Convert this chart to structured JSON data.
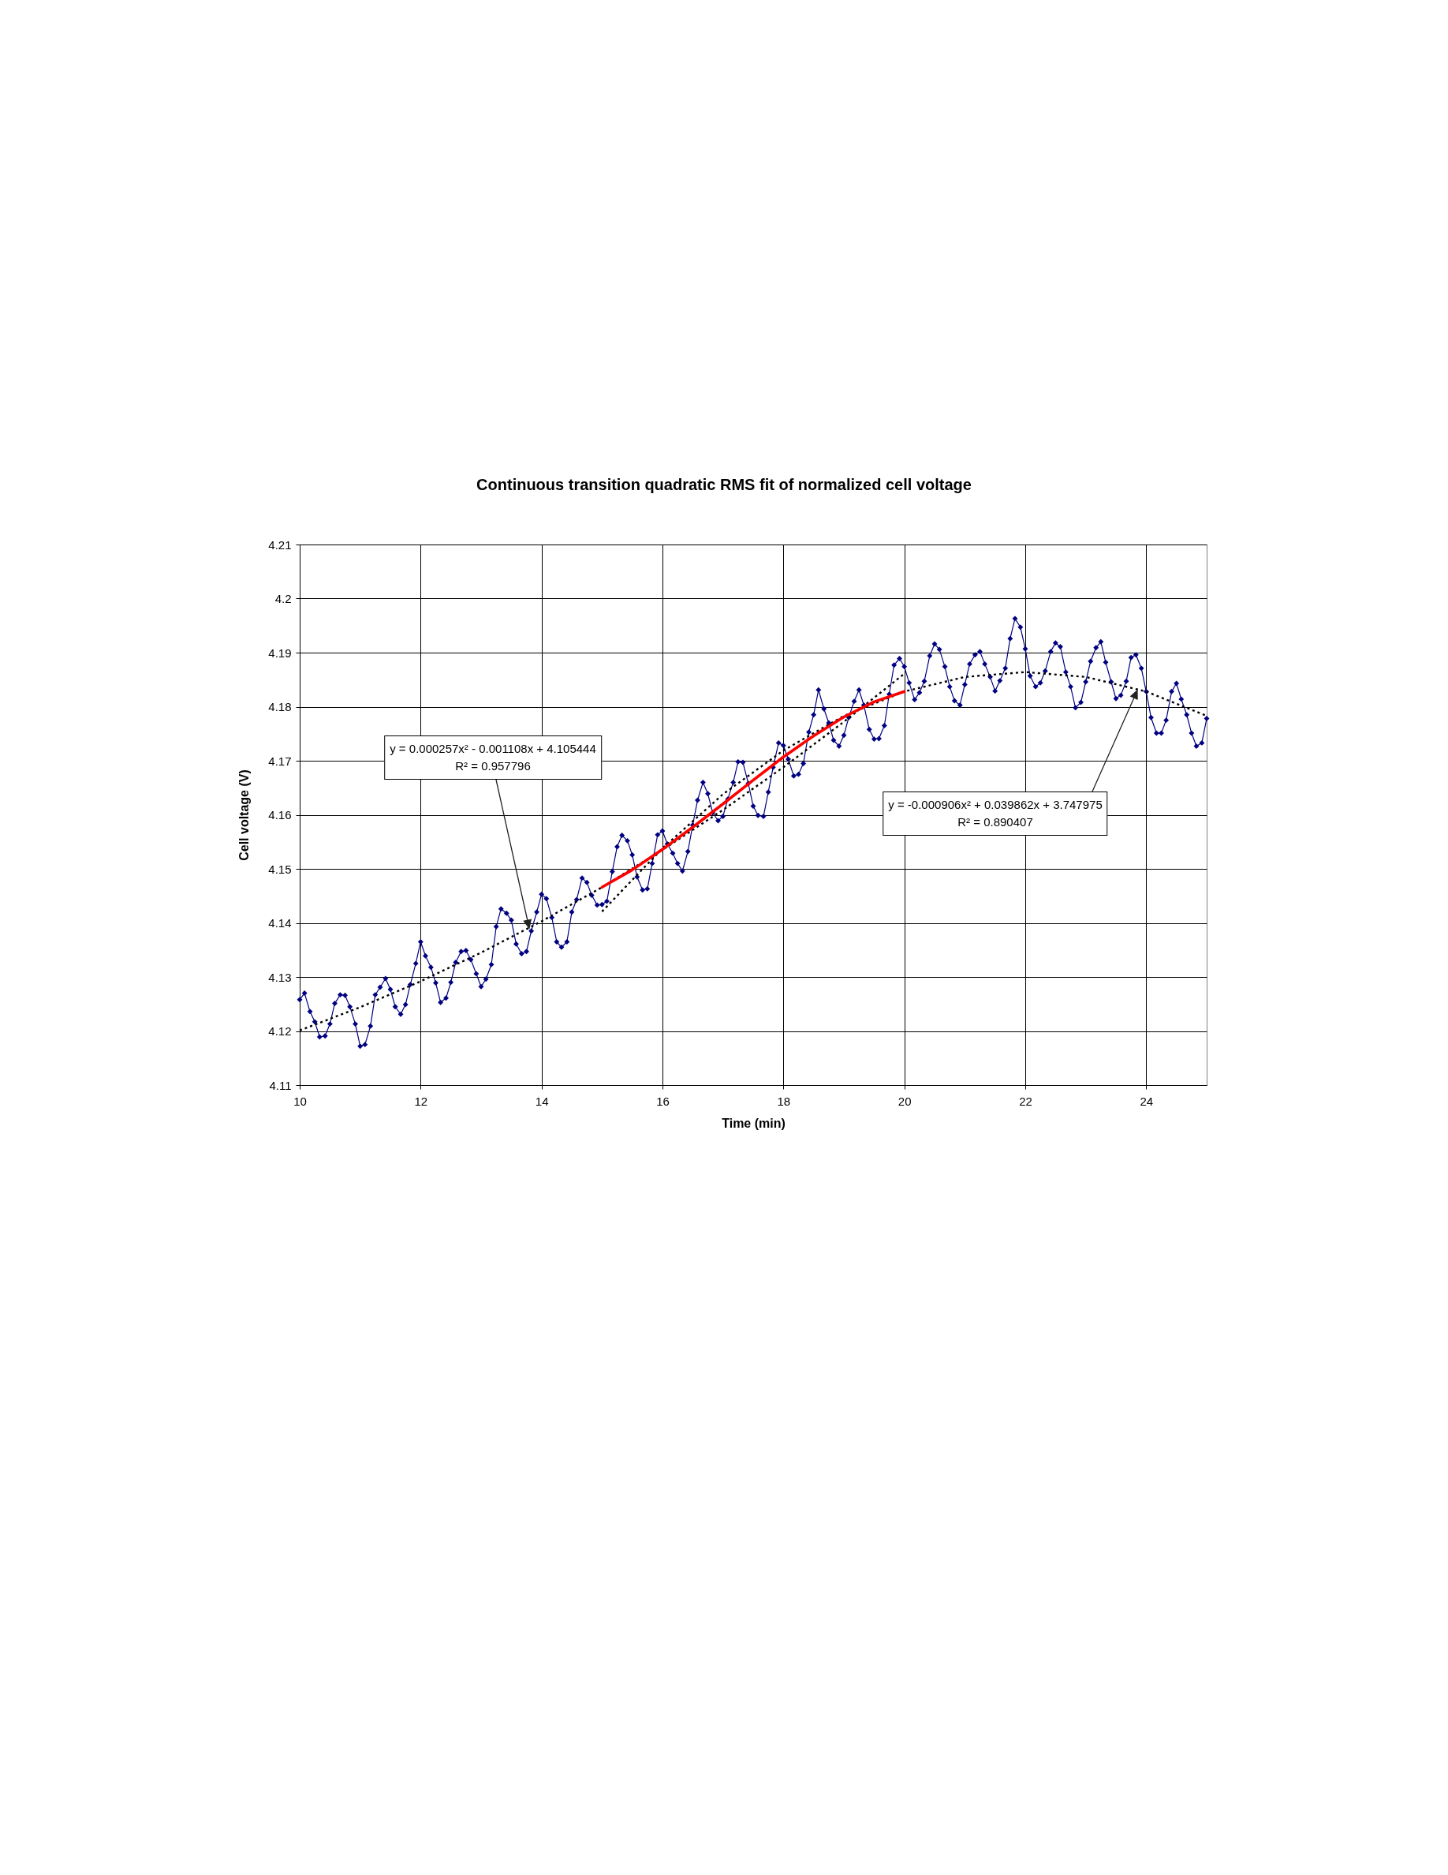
{
  "chart_data": {
    "type": "line",
    "title": "Continuous transition quadratic RMS fit of normalized cell voltage",
    "xlabel": "Time (min)",
    "ylabel": "Cell voltage (V)",
    "xlim": [
      10,
      25
    ],
    "xticks": [
      10,
      12,
      14,
      16,
      18,
      20,
      22,
      24
    ],
    "ylim": [
      4.11,
      4.21
    ],
    "yticks": [
      4.11,
      4.12,
      4.13,
      4.14,
      4.15,
      4.16,
      4.17,
      4.18,
      4.19,
      4.2,
      4.21
    ],
    "grid": true,
    "series": [
      {
        "color": "#000080",
        "marker": "diamond",
        "line_style": "solid",
        "x": [
          10,
          10.08,
          10.17,
          10.25,
          10.33,
          10.42,
          10.5,
          10.58,
          10.67,
          10.75,
          10.83,
          10.92,
          11,
          11.08,
          11.17,
          11.25,
          11.33,
          11.42,
          11.5,
          11.58,
          11.67,
          11.75,
          11.83,
          11.92,
          12,
          12.08,
          12.17,
          12.25,
          12.33,
          12.42,
          12.5,
          12.58,
          12.67,
          12.75,
          12.83,
          12.92,
          13,
          13.08,
          13.17,
          13.25,
          13.33,
          13.42,
          13.5,
          13.58,
          13.67,
          13.75,
          13.83,
          13.92,
          14,
          14.08,
          14.17,
          14.25,
          14.33,
          14.42,
          14.5,
          14.58,
          14.67,
          14.75,
          14.83,
          14.92,
          15,
          15.08,
          15.17,
          15.25,
          15.33,
          15.42,
          15.5,
          15.58,
          15.67,
          15.75,
          15.83,
          15.92,
          16,
          16.08,
          16.17,
          16.25,
          16.33,
          16.42,
          16.5,
          16.58,
          16.67,
          16.75,
          16.83,
          16.92,
          17,
          17.08,
          17.17,
          17.25,
          17.33,
          17.42,
          17.5,
          17.58,
          17.67,
          17.75,
          17.83,
          17.92,
          18,
          18.08,
          18.17,
          18.25,
          18.33,
          18.42,
          18.5,
          18.58,
          18.67,
          18.75,
          18.83,
          18.92,
          19,
          19.08,
          19.17,
          19.25,
          19.33,
          19.42,
          19.5,
          19.58,
          19.67,
          19.75,
          19.83,
          19.92,
          20,
          20.08,
          20.17,
          20.25,
          20.33,
          20.42,
          20.5,
          20.58,
          20.67,
          20.75,
          20.83,
          20.92,
          21,
          21.08,
          21.17,
          21.25,
          21.33,
          21.42,
          21.5,
          21.58,
          21.67,
          21.75,
          21.83,
          21.92,
          22,
          22.08,
          22.17,
          22.25,
          22.33,
          22.42,
          22.5,
          22.58,
          22.67,
          22.75,
          22.83,
          22.92,
          23,
          23.08,
          23.17,
          23.25,
          23.33,
          23.42,
          23.5,
          23.58,
          23.67,
          23.75,
          23.83,
          23.92,
          24,
          24.08,
          24.17,
          24.25,
          24.33,
          24.42,
          24.5,
          24.58,
          24.67,
          24.75,
          24.83,
          24.92,
          25
        ],
        "values": [
          4.1258,
          4.127,
          4.1236,
          4.1217,
          4.1189,
          4.1191,
          4.1213,
          4.1251,
          4.1267,
          4.1266,
          4.1245,
          4.1213,
          4.1172,
          4.1175,
          4.1209,
          4.1267,
          4.1281,
          4.1297,
          4.1277,
          4.1245,
          4.1231,
          4.1249,
          4.1286,
          4.1325,
          4.1365,
          4.1339,
          4.1318,
          4.1289,
          4.1253,
          4.1261,
          4.129,
          4.1327,
          4.1347,
          4.1349,
          4.1332,
          4.1306,
          4.1282,
          4.1296,
          4.1323,
          4.1393,
          4.1426,
          4.1418,
          4.1405,
          4.1361,
          4.1343,
          4.1347,
          4.1385,
          4.142,
          4.1453,
          4.1445,
          4.141,
          4.1365,
          4.1355,
          4.1365,
          4.142,
          4.1443,
          4.1483,
          4.1475,
          4.1451,
          4.1433,
          4.1434,
          4.144,
          4.1495,
          4.1541,
          4.1562,
          4.1552,
          4.1526,
          4.1485,
          4.1461,
          4.1463,
          4.151,
          4.1563,
          4.157,
          4.1546,
          4.1529,
          4.151,
          4.1496,
          4.1532,
          4.1581,
          4.1627,
          4.166,
          4.1639,
          4.1604,
          4.1589,
          4.1597,
          4.1629,
          4.166,
          4.1698,
          4.1697,
          4.1658,
          4.1616,
          4.1599,
          4.1597,
          4.1642,
          4.1688,
          4.1733,
          4.1728,
          4.1703,
          4.1672,
          4.1675,
          4.1695,
          4.1753,
          4.1785,
          4.1831,
          4.1796,
          4.177,
          4.1738,
          4.1727,
          4.1747,
          4.178,
          4.181,
          4.1831,
          4.1803,
          4.1758,
          4.174,
          4.1741,
          4.1765,
          4.1823,
          4.1877,
          4.1889,
          4.1874,
          4.1844,
          4.1813,
          4.1826,
          4.1847,
          4.1894,
          4.1916,
          4.1906,
          4.1874,
          4.1837,
          4.1811,
          4.1803,
          4.1841,
          4.1879,
          4.1896,
          4.1902,
          4.1879,
          4.1855,
          4.1829,
          4.1848,
          4.1871,
          4.1926,
          4.1963,
          4.1947,
          4.1907,
          4.1857,
          4.1837,
          4.1844,
          4.1866,
          4.1902,
          4.1918,
          4.1911,
          4.1864,
          4.1837,
          4.1798,
          4.1808,
          4.1846,
          4.1884,
          4.1909,
          4.192,
          4.1882,
          4.1846,
          4.1815,
          4.1821,
          4.1847,
          4.1891,
          4.1896,
          4.1871,
          4.1828,
          4.178,
          4.1751,
          4.1751,
          4.1775,
          4.1828,
          4.1843,
          4.1814,
          4.1785,
          4.1751,
          4.1727,
          4.1733,
          4.1778
        ]
      },
      {
        "color": "#000000",
        "marker": "none",
        "line_style": "dotted",
        "x": [
          10,
          11,
          12,
          13,
          14,
          15,
          16,
          17,
          18,
          19,
          20
        ],
        "values": [
          4.1201,
          4.1244,
          4.1292,
          4.1345,
          4.1403,
          4.1466,
          4.1535,
          4.1609,
          4.1688,
          4.1772,
          4.1861
        ]
      },
      {
        "color": "#000000",
        "marker": "none",
        "line_style": "dotted",
        "x": [
          15,
          16,
          17,
          18,
          19,
          20,
          21,
          22,
          23,
          24,
          25
        ],
        "values": [
          4.1421,
          4.1538,
          4.1638,
          4.1719,
          4.1783,
          4.1828,
          4.1855,
          4.1864,
          4.1855,
          4.1828,
          4.1783
        ]
      },
      {
        "color": "#ff0000",
        "marker": "none",
        "line_style": "solid",
        "x": [
          15,
          15.5,
          16,
          16.5,
          17,
          17.5,
          18,
          18.5,
          19,
          19.5,
          20
        ],
        "values": [
          4.1466,
          4.1498,
          4.1536,
          4.1577,
          4.162,
          4.1664,
          4.1707,
          4.1746,
          4.1781,
          4.1809,
          4.1828
        ]
      }
    ],
    "annotations": [
      "y = 0.000257x² - 0.001108x + 4.105444\nR² = 0.957796",
      "y = -0.000906x² + 0.039862x + 3.747975\nR² = 0.890407"
    ]
  }
}
